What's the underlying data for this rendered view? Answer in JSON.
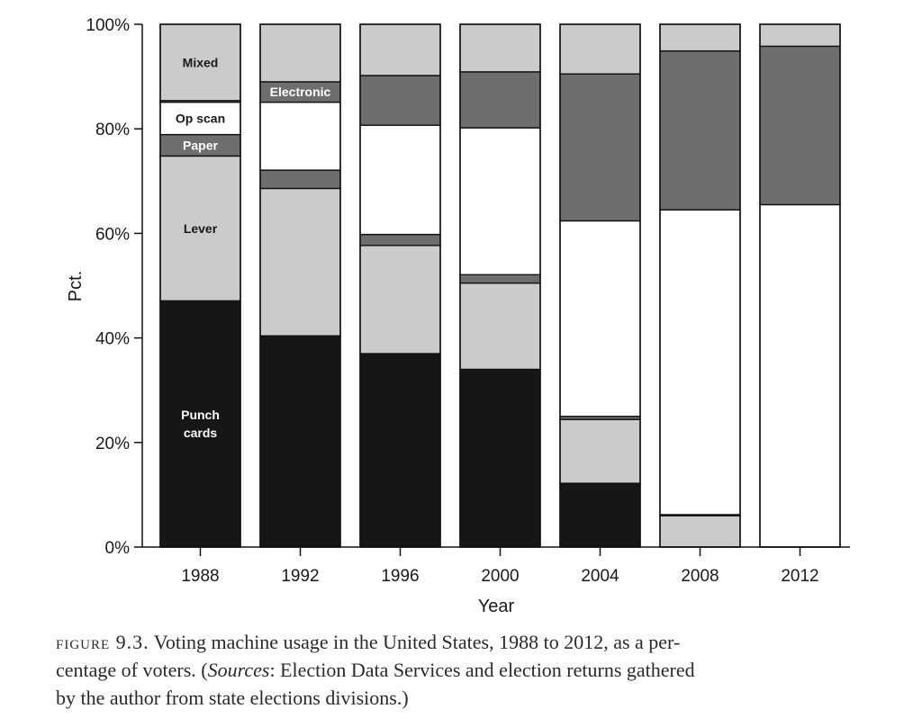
{
  "chart_data": {
    "type": "bar",
    "stacked": true,
    "title": "",
    "xlabel": "Year",
    "ylabel": "Pct.",
    "ylim": [
      0,
      100
    ],
    "yticks": [
      "0%",
      "20%",
      "40%",
      "60%",
      "80%",
      "100%"
    ],
    "categories": [
      "1988",
      "1992",
      "1996",
      "2000",
      "2004",
      "2008",
      "2012"
    ],
    "grid": false,
    "series": [
      {
        "name": "Punch cards",
        "color": "#161616",
        "values": [
          47.1,
          40.4,
          37.0,
          34.0,
          12.2,
          0.0,
          0.0
        ]
      },
      {
        "name": "Lever",
        "color": "#cbcbcb",
        "values": [
          27.7,
          28.2,
          20.7,
          16.5,
          12.2,
          6.0,
          0.0
        ]
      },
      {
        "name": "Paper",
        "color": "#6e6e6e",
        "values": [
          4.1,
          3.5,
          2.1,
          1.6,
          0.6,
          0.2,
          0.0
        ]
      },
      {
        "name": "Op scan",
        "color": "#ffffff",
        "values": [
          6.2,
          13.0,
          20.9,
          28.1,
          37.4,
          58.3,
          65.5
        ]
      },
      {
        "name": "Electronic",
        "color": "#6e6e6e",
        "values": [
          0.3,
          3.9,
          9.5,
          10.7,
          28.1,
          30.4,
          30.3
        ]
      },
      {
        "name": "Mixed",
        "color": "#cbcbcb",
        "values": [
          14.6,
          11.0,
          9.8,
          9.1,
          9.5,
          5.1,
          4.2
        ]
      }
    ],
    "segment_labels": [
      {
        "text": "Mixed",
        "series": "Mixed",
        "category": "1988",
        "color": "#1a1a1a"
      },
      {
        "text": "Electronic",
        "series": "Electronic",
        "category": "1992",
        "color": "#ffffff"
      },
      {
        "text": "Op scan",
        "series": "Op scan",
        "category": "1988",
        "color": "#1a1a1a"
      },
      {
        "text": "Paper",
        "series": "Paper",
        "category": "1988",
        "color": "#ffffff"
      },
      {
        "text": "Lever",
        "series": "Lever",
        "category": "1988",
        "color": "#1a1a1a"
      },
      {
        "text": "Punch\ncards",
        "series": "Punch cards",
        "category": "1988",
        "color": "#ffffff"
      }
    ]
  },
  "caption": {
    "figure_label": "figure 9.3.",
    "line1_text": "Voting machine usage in the United States, 1988 to 2012, as a per-",
    "line2_start": "centage of voters. (",
    "line2_italic": "Sources",
    "line2_end": ": Election Data Services and election returns gathered",
    "line3": "by the author from state elections divisions.)"
  }
}
